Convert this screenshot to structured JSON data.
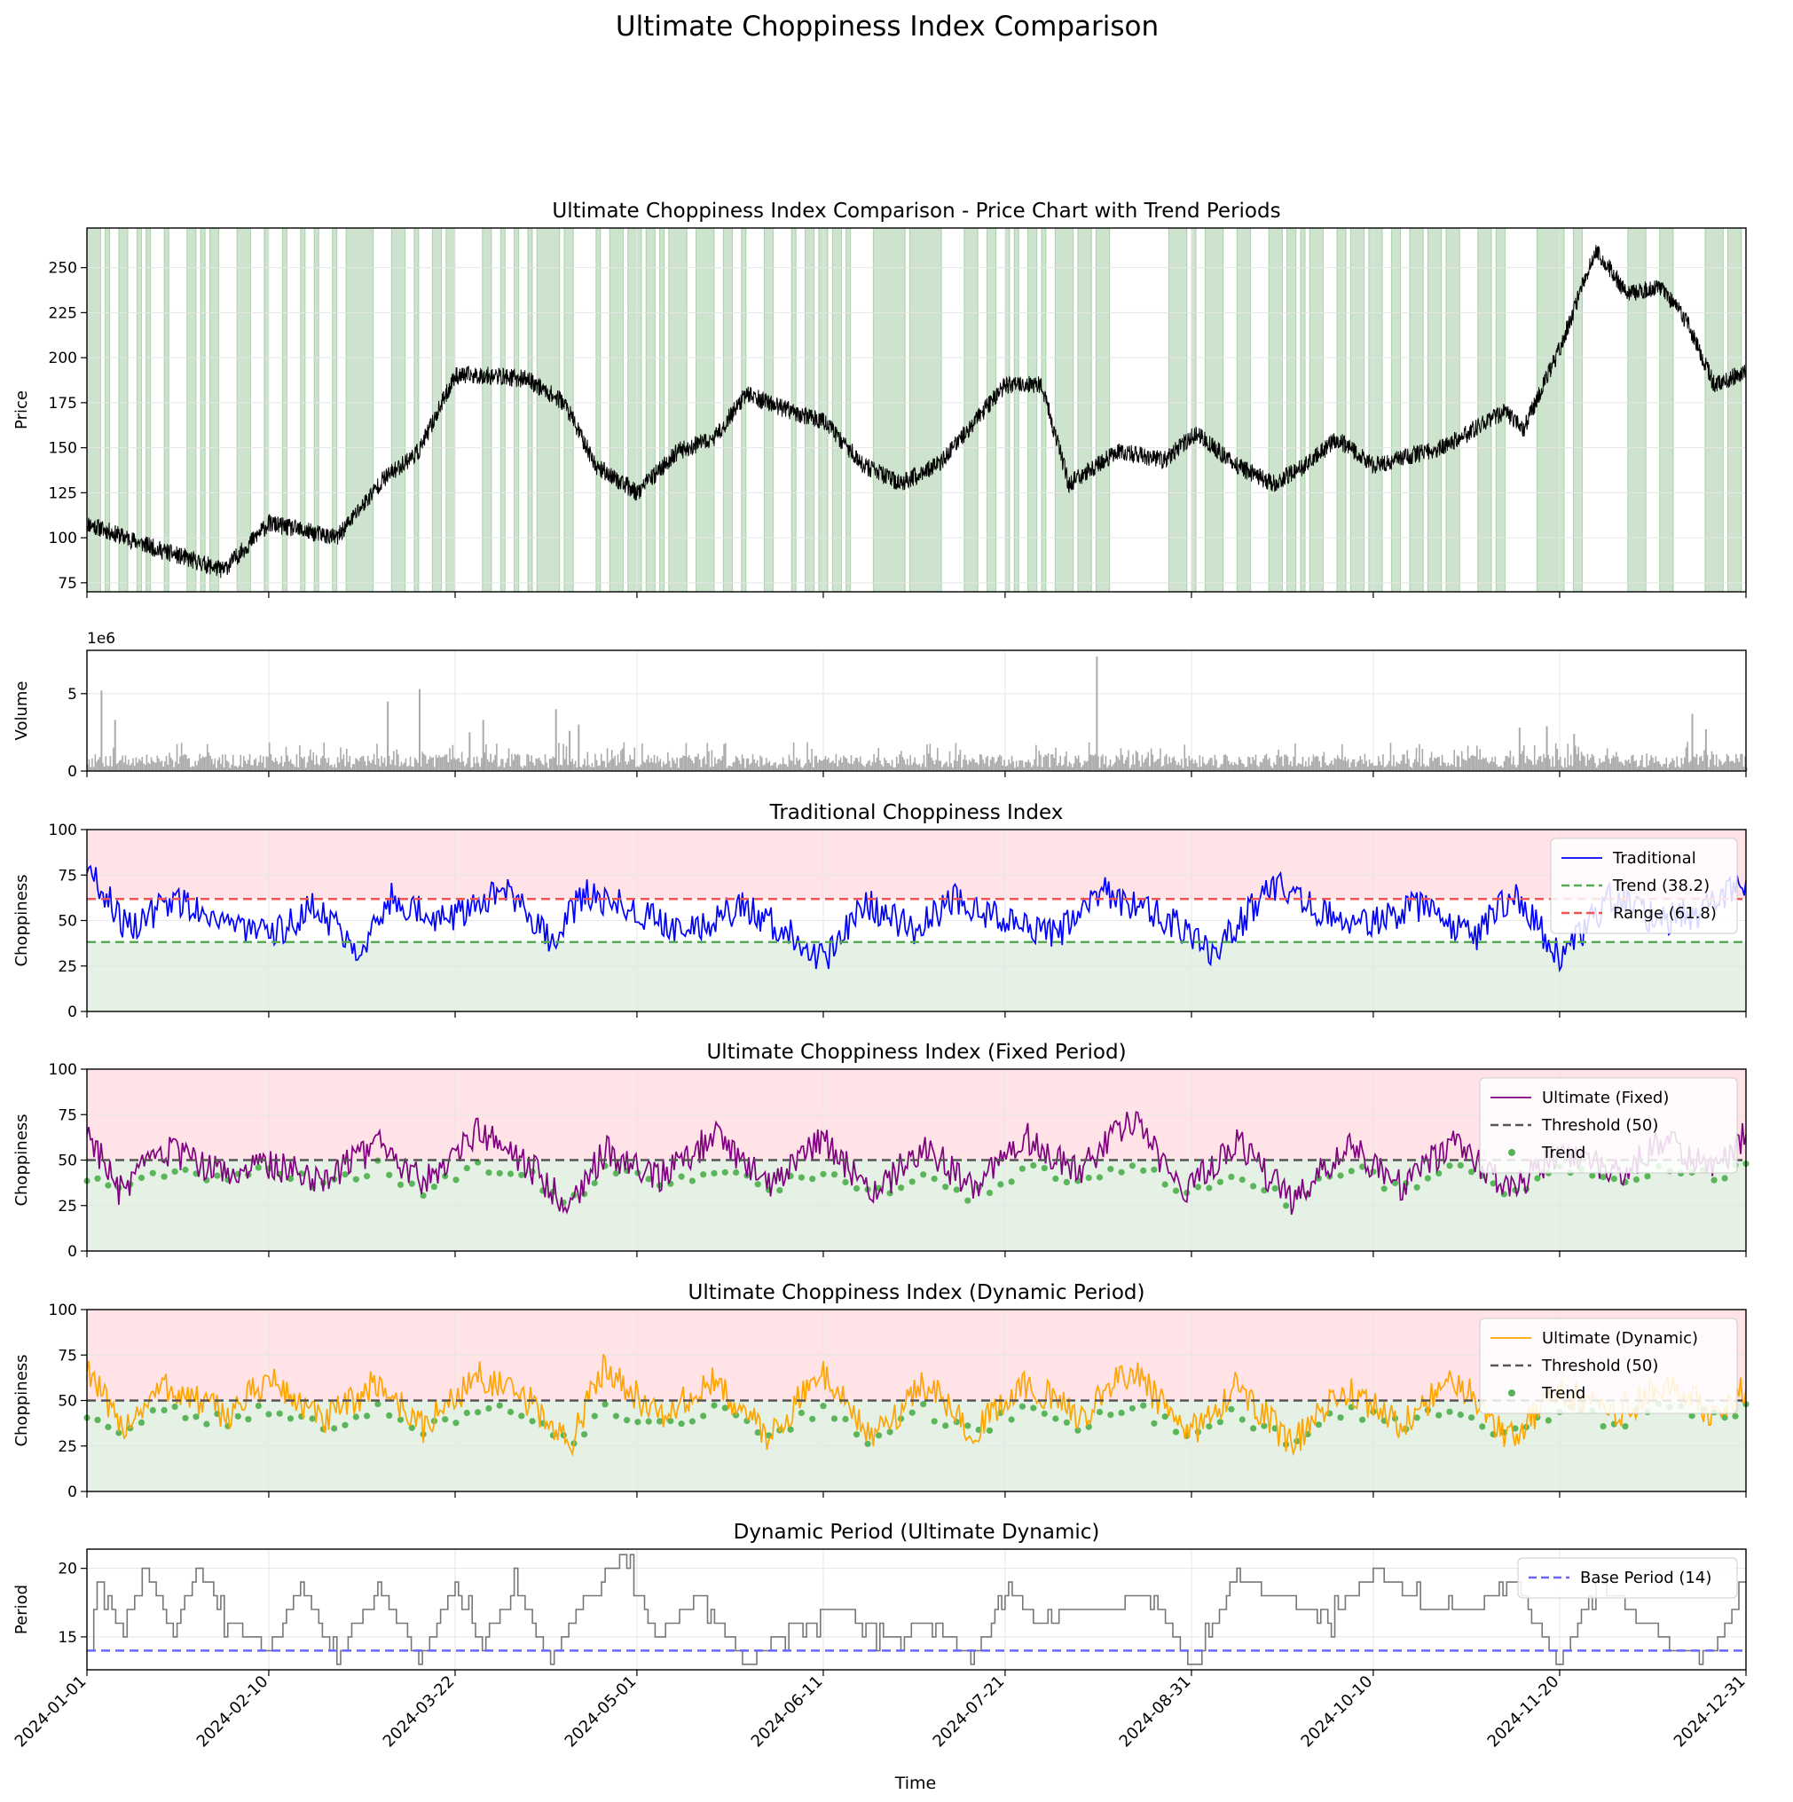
{
  "figure": {
    "suptitle": "Ultimate Choppiness Index Comparison",
    "x_ticks": [
      "2024-01-01",
      "2024-02-10",
      "2024-03-22",
      "2024-05-01",
      "2024-06-11",
      "2024-07-21",
      "2024-08-31",
      "2024-10-10",
      "2024-11-20",
      "2024-12-31"
    ],
    "x_label": "Time"
  },
  "colors": {
    "price_line": "#000000",
    "price_down": "#b22222",
    "trend_span": "#2e8b2e",
    "volume_bar": "#aaaaaa",
    "traditional": "#0000ff",
    "ultimate_fixed": "#800080",
    "ultimate_dynamic": "#ffa500",
    "trend_marker": "#2ca02c",
    "trend_level": "#55aa55",
    "range_level": "#ee5555",
    "threshold": "#555555",
    "range_zone": "#ffe3e6",
    "trend_zone": "#e5f1e5",
    "period_line": "#777777",
    "base_period": "#6666ff",
    "grid": "#e6e6e6"
  },
  "chart_data": [
    {
      "type": "line",
      "title": "Ultimate Choppiness Index Comparison - Price Chart with Trend Periods",
      "ylabel": "Price",
      "ylim": [
        70,
        272
      ],
      "yticks": [
        "75",
        "100",
        "125",
        "150",
        "175",
        "200",
        "225",
        "250"
      ],
      "x": [
        "2024-01-01",
        "2024-01-15",
        "2024-01-31",
        "2024-02-10",
        "2024-02-25",
        "2024-03-06",
        "2024-03-14",
        "2024-03-22",
        "2024-03-30",
        "2024-04-07",
        "2024-04-15",
        "2024-04-22",
        "2024-05-01",
        "2024-05-10",
        "2024-05-18",
        "2024-05-25",
        "2024-06-04",
        "2024-06-11",
        "2024-06-20",
        "2024-06-28",
        "2024-07-07",
        "2024-07-21",
        "2024-07-29",
        "2024-08-04",
        "2024-08-15",
        "2024-08-25",
        "2024-09-01",
        "2024-09-10",
        "2024-09-18",
        "2024-09-25",
        "2024-10-02",
        "2024-10-10",
        "2024-10-25",
        "2024-11-08",
        "2024-11-12",
        "2024-11-20",
        "2024-11-28",
        "2024-12-05",
        "2024-12-12",
        "2024-12-18",
        "2024-12-24",
        "2024-12-31"
      ],
      "series": [
        {
          "name": "Price",
          "values": [
            108,
            95,
            82,
            108,
            100,
            132,
            148,
            190,
            190,
            188,
            175,
            140,
            125,
            148,
            155,
            180,
            170,
            165,
            140,
            130,
            142,
            185,
            185,
            130,
            148,
            143,
            158,
            140,
            130,
            140,
            155,
            140,
            150,
            170,
            160,
            205,
            260,
            235,
            240,
            220,
            185,
            192
          ]
        }
      ],
      "trend_span_note": "Trend",
      "trend_spans": [
        [
          "2024-01-01",
          "2024-01-04"
        ],
        [
          "2024-01-05",
          "2024-01-06"
        ],
        [
          "2024-01-08",
          "2024-01-10"
        ],
        [
          "2024-01-12",
          "2024-01-13"
        ],
        [
          "2024-01-14",
          "2024-01-15"
        ],
        [
          "2024-01-18",
          "2024-01-19"
        ],
        [
          "2024-01-23",
          "2024-01-25"
        ],
        [
          "2024-01-26",
          "2024-01-27"
        ],
        [
          "2024-01-28",
          "2024-01-30"
        ],
        [
          "2024-02-03",
          "2024-02-06"
        ],
        [
          "2024-02-09",
          "2024-02-10"
        ],
        [
          "2024-02-13",
          "2024-02-14"
        ],
        [
          "2024-02-17",
          "2024-02-18"
        ],
        [
          "2024-02-20",
          "2024-02-21"
        ],
        [
          "2024-02-24",
          "2024-02-25"
        ],
        [
          "2024-02-27",
          "2024-03-04"
        ],
        [
          "2024-03-08",
          "2024-03-11"
        ],
        [
          "2024-03-13",
          "2024-03-14"
        ],
        [
          "2024-03-17",
          "2024-03-19"
        ],
        [
          "2024-03-20",
          "2024-03-22"
        ],
        [
          "2024-03-28",
          "2024-03-30"
        ],
        [
          "2024-04-01",
          "2024-04-02"
        ],
        [
          "2024-04-04",
          "2024-04-05"
        ],
        [
          "2024-04-07",
          "2024-04-08"
        ],
        [
          "2024-04-09",
          "2024-04-14"
        ],
        [
          "2024-04-15",
          "2024-04-17"
        ],
        [
          "2024-04-22",
          "2024-04-23"
        ],
        [
          "2024-04-25",
          "2024-04-28"
        ],
        [
          "2024-04-29",
          "2024-05-02"
        ],
        [
          "2024-05-03",
          "2024-05-05"
        ],
        [
          "2024-05-06",
          "2024-05-07"
        ],
        [
          "2024-05-08",
          "2024-05-12"
        ],
        [
          "2024-05-14",
          "2024-05-18"
        ],
        [
          "2024-05-20",
          "2024-05-22"
        ],
        [
          "2024-05-24",
          "2024-05-25"
        ],
        [
          "2024-05-29",
          "2024-05-31"
        ],
        [
          "2024-06-04",
          "2024-06-05"
        ],
        [
          "2024-06-07",
          "2024-06-09"
        ],
        [
          "2024-06-10",
          "2024-06-12"
        ],
        [
          "2024-06-13",
          "2024-06-15"
        ],
        [
          "2024-06-16",
          "2024-06-17"
        ],
        [
          "2024-06-22",
          "2024-06-29"
        ],
        [
          "2024-06-30",
          "2024-07-07"
        ],
        [
          "2024-07-12",
          "2024-07-15"
        ],
        [
          "2024-07-17",
          "2024-07-19"
        ],
        [
          "2024-07-21",
          "2024-07-22"
        ],
        [
          "2024-07-23",
          "2024-07-24"
        ],
        [
          "2024-07-26",
          "2024-07-28"
        ],
        [
          "2024-07-29",
          "2024-07-30"
        ],
        [
          "2024-08-01",
          "2024-08-05"
        ],
        [
          "2024-08-06",
          "2024-08-09"
        ],
        [
          "2024-08-10",
          "2024-08-13"
        ],
        [
          "2024-08-26",
          "2024-08-30"
        ],
        [
          "2024-08-31",
          "2024-09-01"
        ],
        [
          "2024-09-03",
          "2024-09-07"
        ],
        [
          "2024-09-10",
          "2024-09-13"
        ],
        [
          "2024-09-17",
          "2024-09-20"
        ],
        [
          "2024-09-21",
          "2024-09-23"
        ],
        [
          "2024-09-24",
          "2024-09-25"
        ],
        [
          "2024-09-26",
          "2024-09-29"
        ],
        [
          "2024-10-02",
          "2024-10-04"
        ],
        [
          "2024-10-05",
          "2024-10-08"
        ],
        [
          "2024-10-09",
          "2024-10-12"
        ],
        [
          "2024-10-14",
          "2024-10-16"
        ],
        [
          "2024-10-18",
          "2024-10-21"
        ],
        [
          "2024-10-22",
          "2024-10-25"
        ],
        [
          "2024-10-26",
          "2024-10-29"
        ],
        [
          "2024-11-02",
          "2024-11-05"
        ],
        [
          "2024-11-06",
          "2024-11-08"
        ],
        [
          "2024-11-15",
          "2024-11-21"
        ],
        [
          "2024-11-23",
          "2024-11-25"
        ],
        [
          "2024-12-05",
          "2024-12-09"
        ],
        [
          "2024-12-12",
          "2024-12-15"
        ],
        [
          "2024-12-22",
          "2024-12-26"
        ],
        [
          "2024-12-27",
          "2024-12-30"
        ]
      ]
    },
    {
      "type": "bar",
      "title": "",
      "ylabel": "Volume",
      "offset_label": "1e6",
      "ylim": [
        0,
        7.8
      ],
      "yticks": [
        "0",
        "5"
      ],
      "x": [
        "2024-01-04",
        "2024-01-07",
        "2024-03-07",
        "2024-03-14",
        "2024-03-25",
        "2024-03-28",
        "2024-04-13",
        "2024-04-16",
        "2024-04-18",
        "2024-08-10",
        "2024-11-11",
        "2024-11-17",
        "2024-11-23",
        "2024-12-19",
        "2024-12-22"
      ],
      "values": [
        5.2,
        3.3,
        4.5,
        5.3,
        2.5,
        3.3,
        4.0,
        2.6,
        3.0,
        7.4,
        2.8,
        2.9,
        2.4,
        3.7,
        2.7
      ],
      "baseline_range": [
        0.2,
        1.5
      ]
    },
    {
      "type": "line",
      "title": "Traditional Choppiness Index",
      "ylabel": "Choppiness",
      "ylim": [
        0,
        100
      ],
      "yticks": [
        "0",
        "25",
        "50",
        "75",
        "100"
      ],
      "zones": {
        "trend_below": 38.2,
        "range_above": 61.8
      },
      "levels": [
        {
          "name": "Trend (38.2)",
          "value": 38.2
        },
        {
          "name": "Range (61.8)",
          "value": 61.8
        }
      ],
      "x": [
        "2024-01-01",
        "2024-01-10",
        "2024-01-20",
        "2024-02-01",
        "2024-02-10",
        "2024-02-20",
        "2024-03-01",
        "2024-03-08",
        "2024-03-20",
        "2024-04-01",
        "2024-04-12",
        "2024-04-20",
        "2024-05-01",
        "2024-05-12",
        "2024-05-25",
        "2024-06-05",
        "2024-06-11",
        "2024-06-20",
        "2024-07-01",
        "2024-07-10",
        "2024-07-21",
        "2024-08-01",
        "2024-08-12",
        "2024-08-25",
        "2024-09-05",
        "2024-09-18",
        "2024-09-28",
        "2024-10-10",
        "2024-10-20",
        "2024-11-01",
        "2024-11-10",
        "2024-11-20",
        "2024-12-01",
        "2024-12-12",
        "2024-12-22",
        "2024-12-31"
      ],
      "series": [
        {
          "name": "Traditional",
          "values": [
            80,
            45,
            62,
            50,
            40,
            58,
            35,
            62,
            50,
            68,
            40,
            65,
            55,
            45,
            58,
            40,
            28,
            60,
            45,
            62,
            50,
            42,
            65,
            52,
            32,
            70,
            55,
            48,
            58,
            40,
            65,
            30,
            62,
            50,
            55,
            72
          ]
        }
      ]
    },
    {
      "type": "line",
      "title": "Ultimate Choppiness Index (Fixed Period)",
      "ylabel": "Choppiness",
      "ylim": [
        0,
        100
      ],
      "yticks": [
        "0",
        "25",
        "50",
        "75",
        "100"
      ],
      "zones": {
        "trend_below": 50,
        "range_above": 50
      },
      "levels": [
        {
          "name": "Threshold (50)",
          "value": 50
        }
      ],
      "x": [
        "2024-01-01",
        "2024-01-08",
        "2024-01-18",
        "2024-02-01",
        "2024-02-10",
        "2024-02-22",
        "2024-03-05",
        "2024-03-15",
        "2024-03-27",
        "2024-04-08",
        "2024-04-16",
        "2024-04-24",
        "2024-05-06",
        "2024-05-18",
        "2024-05-30",
        "2024-06-11",
        "2024-06-22",
        "2024-07-03",
        "2024-07-14",
        "2024-07-26",
        "2024-08-06",
        "2024-08-18",
        "2024-08-30",
        "2024-09-10",
        "2024-09-22",
        "2024-10-04",
        "2024-10-16",
        "2024-10-28",
        "2024-11-09",
        "2024-11-20",
        "2024-12-02",
        "2024-12-13",
        "2024-12-24",
        "2024-12-31"
      ],
      "series": [
        {
          "name": "Ultimate (Fixed)",
          "values": [
            68,
            32,
            55,
            42,
            48,
            40,
            58,
            38,
            66,
            45,
            26,
            55,
            40,
            63,
            36,
            62,
            30,
            58,
            34,
            62,
            44,
            72,
            32,
            60,
            27,
            58,
            36,
            61,
            32,
            56,
            42,
            60,
            45,
            64
          ]
        },
        {
          "name": "Trend",
          "values": [
            40,
            32,
            42,
            38,
            44,
            36,
            46,
            34,
            46,
            40,
            26,
            44,
            36,
            46,
            32,
            46,
            30,
            44,
            30,
            46,
            36,
            48,
            30,
            44,
            27,
            46,
            34,
            46,
            30,
            44,
            38,
            46,
            40,
            48
          ]
        }
      ]
    },
    {
      "type": "line",
      "title": "Ultimate Choppiness Index (Dynamic Period)",
      "ylabel": "Choppiness",
      "ylim": [
        0,
        100
      ],
      "yticks": [
        "0",
        "25",
        "50",
        "75",
        "100"
      ],
      "zones": {
        "trend_below": 50,
        "range_above": 50
      },
      "levels": [
        {
          "name": "Threshold (50)",
          "value": 50
        }
      ],
      "x": [
        "2024-01-01",
        "2024-01-08",
        "2024-01-18",
        "2024-02-01",
        "2024-02-10",
        "2024-02-22",
        "2024-03-05",
        "2024-03-15",
        "2024-03-27",
        "2024-04-08",
        "2024-04-16",
        "2024-04-24",
        "2024-05-06",
        "2024-05-18",
        "2024-05-30",
        "2024-06-11",
        "2024-06-22",
        "2024-07-03",
        "2024-07-14",
        "2024-07-26",
        "2024-08-06",
        "2024-08-18",
        "2024-08-30",
        "2024-09-10",
        "2024-09-22",
        "2024-10-04",
        "2024-10-16",
        "2024-10-28",
        "2024-11-09",
        "2024-11-20",
        "2024-12-02",
        "2024-12-13",
        "2024-12-24",
        "2024-12-31"
      ],
      "series": [
        {
          "name": "Ultimate (Dynamic)",
          "values": [
            70,
            34,
            58,
            42,
            62,
            38,
            60,
            35,
            64,
            48,
            25,
            70,
            40,
            60,
            30,
            66,
            28,
            60,
            33,
            60,
            40,
            68,
            30,
            58,
            26,
            56,
            36,
            62,
            30,
            56,
            42,
            58,
            44,
            56
          ]
        },
        {
          "name": "Trend",
          "values": [
            42,
            34,
            44,
            38,
            46,
            36,
            46,
            35,
            46,
            42,
            25,
            44,
            36,
            46,
            30,
            46,
            28,
            44,
            33,
            46,
            36,
            48,
            30,
            44,
            26,
            46,
            36,
            46,
            30,
            44,
            38,
            46,
            40,
            48
          ]
        }
      ]
    },
    {
      "type": "line",
      "title": "Dynamic Period (Ultimate Dynamic)",
      "ylabel": "Period",
      "ylim": [
        12.6,
        21.4
      ],
      "yticks": [
        "15",
        "20"
      ],
      "levels": [
        {
          "name": "Base Period (14)",
          "value": 14
        }
      ],
      "x": [
        "2024-01-01",
        "2024-01-04",
        "2024-01-09",
        "2024-01-14",
        "2024-01-20",
        "2024-01-25",
        "2024-02-01",
        "2024-02-10",
        "2024-02-17",
        "2024-02-25",
        "2024-03-05",
        "2024-03-14",
        "2024-03-22",
        "2024-03-28",
        "2024-04-04",
        "2024-04-12",
        "2024-04-20",
        "2024-04-28",
        "2024-05-05",
        "2024-05-15",
        "2024-05-25",
        "2024-06-05",
        "2024-06-15",
        "2024-06-25",
        "2024-07-05",
        "2024-07-15",
        "2024-07-21",
        "2024-07-28",
        "2024-08-10",
        "2024-08-22",
        "2024-08-31",
        "2024-09-10",
        "2024-09-20",
        "2024-09-30",
        "2024-10-10",
        "2024-10-22",
        "2024-11-01",
        "2024-11-10",
        "2024-11-20",
        "2024-11-28",
        "2024-12-06",
        "2024-12-15",
        "2024-12-24",
        "2024-12-31"
      ],
      "series": [
        {
          "name": "Period",
          "values": [
            14,
            19,
            15,
            20,
            15,
            20,
            16,
            14,
            19,
            13,
            19,
            13,
            19,
            14,
            19,
            13,
            18,
            21,
            15,
            18,
            13,
            16,
            17,
            15,
            16,
            13,
            19,
            16,
            17,
            18,
            13,
            19,
            18,
            16,
            20,
            17,
            17,
            19,
            13,
            19,
            17,
            14,
            14,
            19
          ]
        }
      ]
    }
  ]
}
